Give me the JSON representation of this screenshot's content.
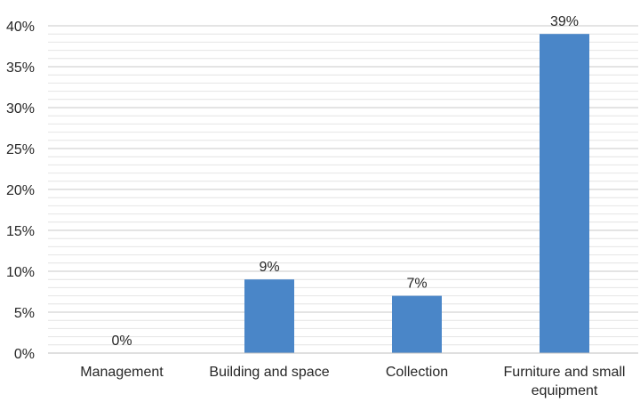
{
  "chart_data": {
    "type": "bar",
    "title": "",
    "xlabel": "",
    "ylabel": "",
    "categories": [
      [
        "Management"
      ],
      [
        "Building and space"
      ],
      [
        "Collection"
      ],
      [
        "Furniture and small",
        "equipment"
      ]
    ],
    "values": [
      0,
      9,
      7,
      39
    ],
    "data_labels": [
      "0%",
      "9%",
      "7%",
      "39%"
    ],
    "ylim": [
      0,
      40
    ],
    "y_ticks": [
      0,
      5,
      10,
      15,
      20,
      25,
      30,
      35,
      40
    ],
    "y_tick_labels": [
      "0%",
      "5%",
      "10%",
      "15%",
      "20%",
      "25%",
      "30%",
      "35%",
      "40%"
    ],
    "grid": true,
    "minor_grid": true,
    "legend": "none",
    "colors": {
      "bar": "#4a86c8",
      "major_grid": "#c8c8c8",
      "minor_grid": "#e4e4e4",
      "axis": "#bfbfbf",
      "text": "#262626"
    }
  }
}
